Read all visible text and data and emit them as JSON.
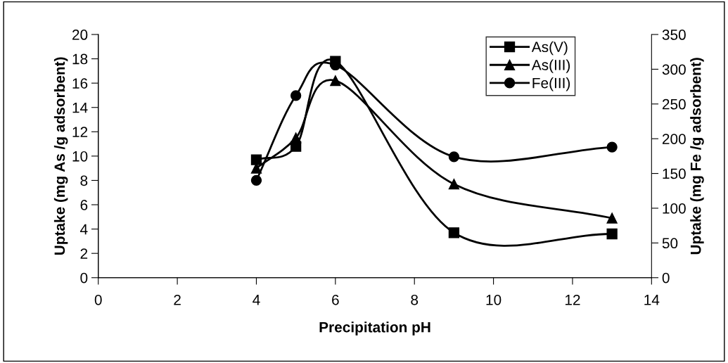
{
  "chart_data": {
    "type": "line",
    "xlabel": "Precipitation pH",
    "ylabel": "Uptake (mg As /g adsorbent)",
    "y2label": "Uptake (mg Fe /g adsorbent)",
    "x": [
      4,
      5,
      6,
      9,
      13
    ],
    "series": [
      {
        "name": "As(V)",
        "color": "#000000",
        "marker": "square",
        "values": [
          9.7,
          10.8,
          17.8,
          3.7,
          3.6
        ]
      },
      {
        "name": "As(III)",
        "color": "#000000",
        "marker": "triangle",
        "values": [
          9.0,
          11.5,
          16.2,
          7.7,
          4.9
        ]
      },
      {
        "name": "Fe(III)",
        "color": "#000000",
        "marker": "circle",
        "axis": "y2",
        "values": [
          140,
          262,
          306,
          174,
          188
        ]
      }
    ],
    "xlim": [
      0,
      14
    ],
    "xticks": [
      0,
      2,
      4,
      6,
      8,
      10,
      12,
      14
    ],
    "ylim": [
      0,
      20
    ],
    "yticks": [
      0,
      2,
      4,
      6,
      8,
      10,
      12,
      14,
      16,
      18,
      20
    ],
    "y2lim": [
      0,
      350
    ],
    "y2ticks": [
      0,
      50,
      100,
      150,
      200,
      250,
      300,
      350
    ],
    "legend": "top right",
    "grid": false,
    "line_style": "solid"
  }
}
